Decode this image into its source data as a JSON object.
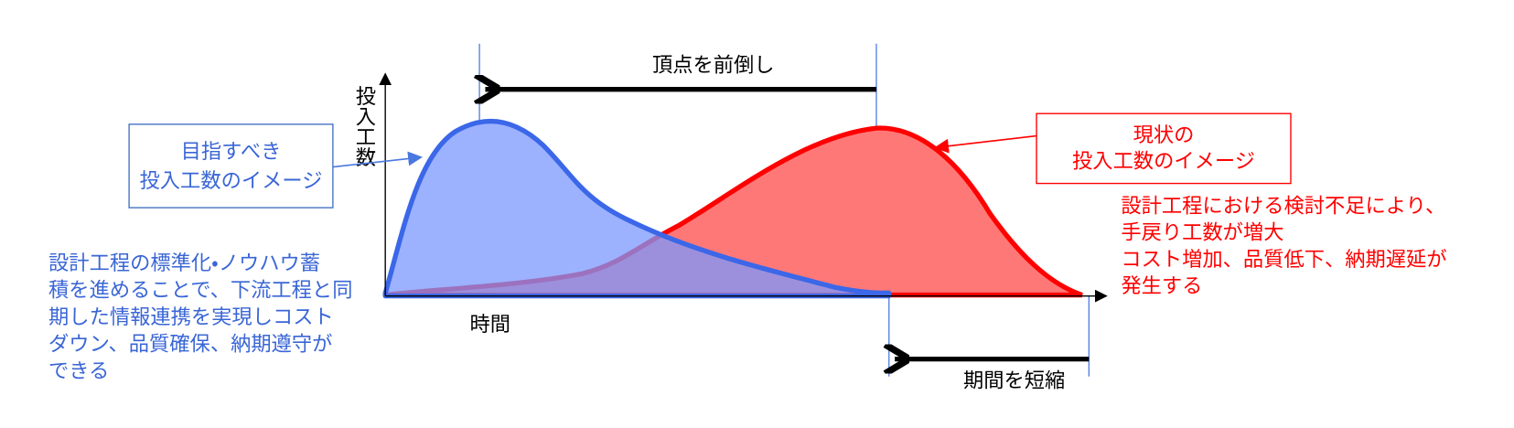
{
  "top_arrow_label": "頂点を前倒し",
  "y_axis_label": "投入工数",
  "x_axis_label": "時間",
  "target_box": {
    "lines": [
      "目指すべき",
      "投入工数のイメージ"
    ]
  },
  "current_box": {
    "lines": [
      "現状の",
      "投入工数のイメージ"
    ]
  },
  "current_note": {
    "lines": [
      "設計工程における検討不足により、",
      "手戻り工数が増大",
      "コスト増加、品質低下、納期遅延が",
      "発生する"
    ]
  },
  "target_note": {
    "lines": [
      "設計工程の標準化・ノウハウ蓄",
      "積を進めることで、下流工程と同",
      "期した情報連携を実現しコスト",
      "ダウン、品質確保、納期遵守が",
      "できる"
    ]
  },
  "bottom_arrow_label": "期間を短縮"
}
